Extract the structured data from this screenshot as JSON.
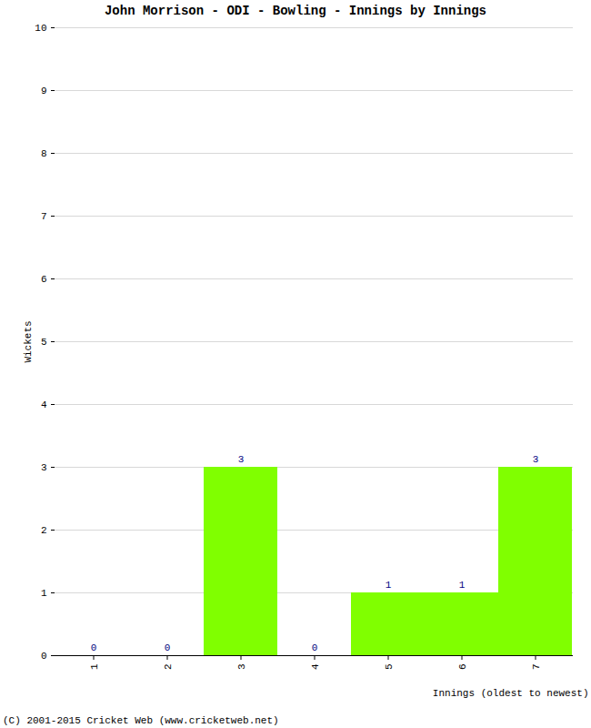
{
  "chart_data": {
    "type": "bar",
    "title": "John Morrison - ODI - Bowling - Innings by Innings",
    "x_label": "Innings (oldest to newest)",
    "y_label": "Wickets",
    "categories": [
      1,
      2,
      3,
      4,
      5,
      6,
      7
    ],
    "values": [
      0,
      0,
      3,
      0,
      1,
      1,
      3
    ],
    "color": "#80ff00",
    "ylim": [
      0,
      10
    ],
    "yticks": [
      0,
      1,
      2,
      3,
      4,
      5,
      6,
      7,
      8,
      9,
      10
    ],
    "grid": true,
    "data_labels": true,
    "annotations": [
      "(C) 2001-2015 Cricket Web (www.cricketweb.net)"
    ]
  }
}
